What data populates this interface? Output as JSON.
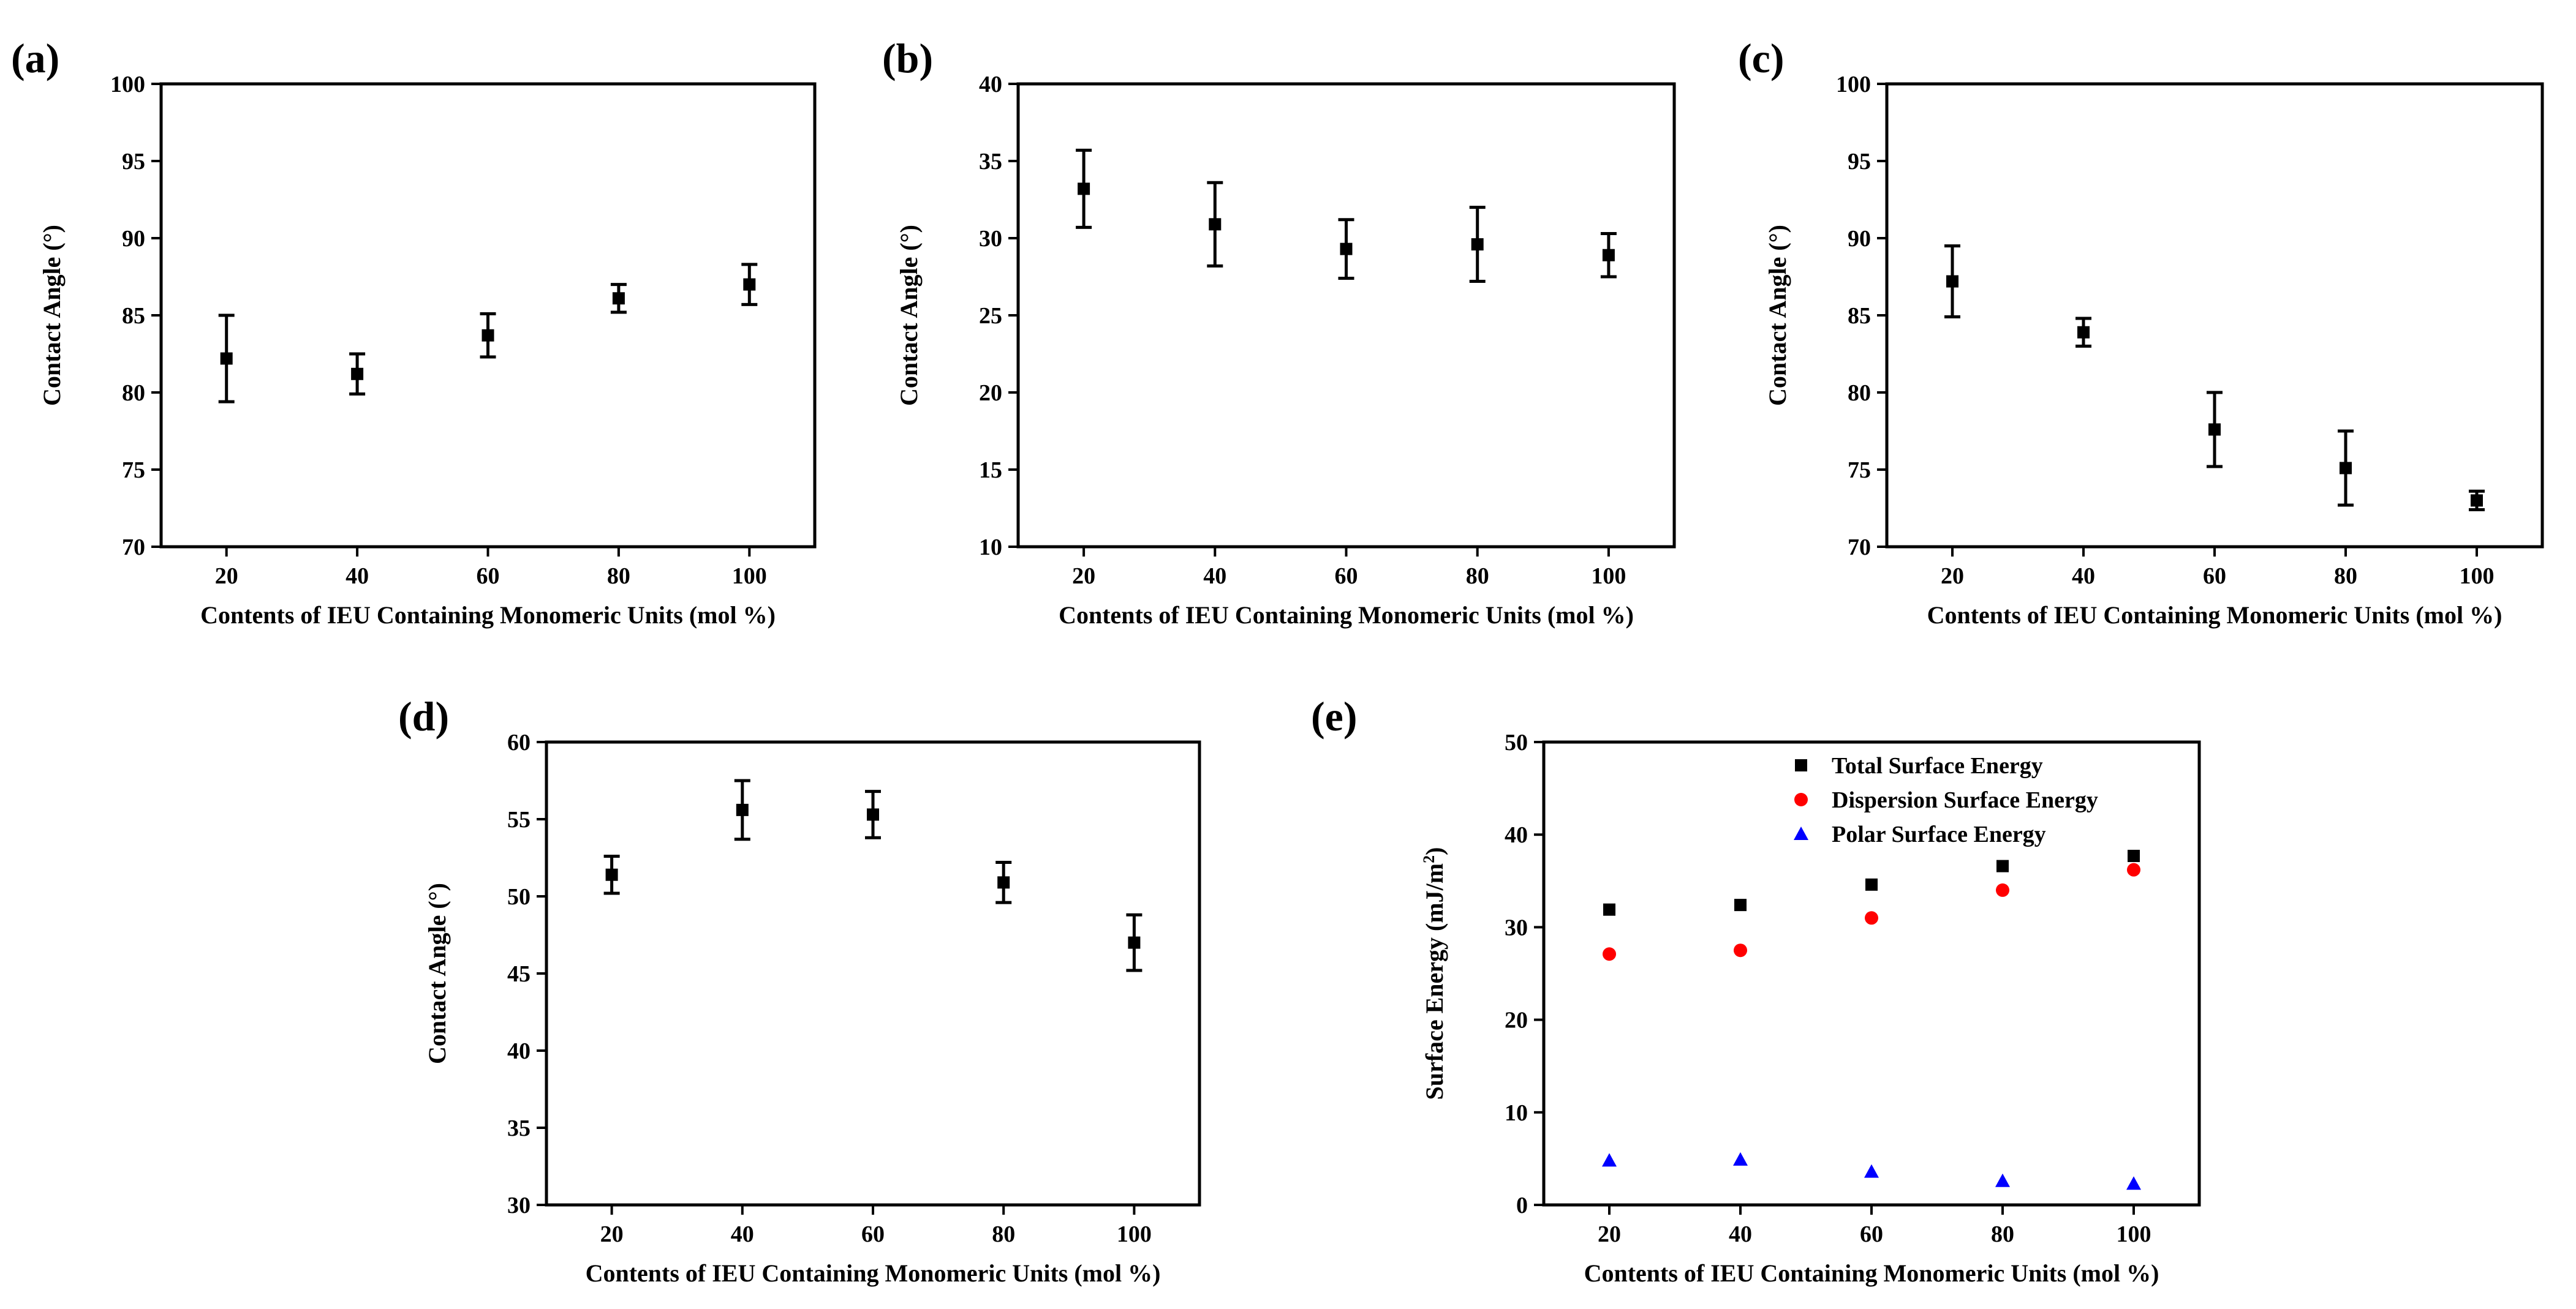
{
  "chart_data": [
    {
      "panel": "(a)",
      "type": "scatter",
      "xlabel": "Contents of IEU Containing Monomeric Units (mol %)",
      "ylabel": "Contact Angle (°)",
      "x": [
        20,
        40,
        60,
        80,
        100
      ],
      "xticks": [
        20,
        40,
        60,
        80,
        100
      ],
      "xlim": [
        10,
        110
      ],
      "yticks": [
        70,
        75,
        80,
        85,
        90,
        95,
        100
      ],
      "ylim": [
        70,
        100
      ],
      "series": [
        {
          "name": "Contact Angle",
          "marker": "square",
          "color": "#000000",
          "values": [
            82.2,
            81.2,
            83.7,
            86.1,
            87.0
          ],
          "errors": [
            2.8,
            1.3,
            1.4,
            0.9,
            1.3
          ]
        }
      ]
    },
    {
      "panel": "(b)",
      "type": "scatter",
      "xlabel": "Contents of IEU Containing Monomeric Units (mol %)",
      "ylabel": "Contact Angle (°)",
      "x": [
        20,
        40,
        60,
        80,
        100
      ],
      "xticks": [
        20,
        40,
        60,
        80,
        100
      ],
      "xlim": [
        10,
        110
      ],
      "yticks": [
        10,
        15,
        20,
        25,
        30,
        35,
        40
      ],
      "ylim": [
        10,
        40
      ],
      "series": [
        {
          "name": "Contact Angle",
          "marker": "square",
          "color": "#000000",
          "values": [
            33.2,
            30.9,
            29.3,
            29.6,
            28.9
          ],
          "errors": [
            2.5,
            2.7,
            1.9,
            2.4,
            1.4
          ]
        }
      ]
    },
    {
      "panel": "(c)",
      "type": "scatter",
      "xlabel": "Contents of IEU Containing Monomeric Units (mol %)",
      "ylabel": "Contact Angle (°)",
      "x": [
        20,
        40,
        60,
        80,
        100
      ],
      "xticks": [
        20,
        40,
        60,
        80,
        100
      ],
      "xlim": [
        10,
        110
      ],
      "yticks": [
        70,
        75,
        80,
        85,
        90,
        95,
        100
      ],
      "ylim": [
        70,
        100
      ],
      "series": [
        {
          "name": "Contact Angle",
          "marker": "square",
          "color": "#000000",
          "values": [
            87.2,
            83.9,
            77.6,
            75.1,
            73.0
          ],
          "errors": [
            2.3,
            0.9,
            2.4,
            2.4,
            0.6
          ]
        }
      ]
    },
    {
      "panel": "(d)",
      "type": "scatter",
      "xlabel": "Contents of IEU Containing Monomeric Units (mol %)",
      "ylabel": "Contact Angle (°)",
      "x": [
        20,
        40,
        60,
        80,
        100
      ],
      "xticks": [
        20,
        40,
        60,
        80,
        100
      ],
      "xlim": [
        10,
        110
      ],
      "yticks": [
        30,
        35,
        40,
        45,
        50,
        55,
        60
      ],
      "ylim": [
        30,
        60
      ],
      "series": [
        {
          "name": "Contact Angle",
          "marker": "square",
          "color": "#000000",
          "values": [
            51.4,
            55.6,
            55.3,
            50.9,
            47.0
          ],
          "errors": [
            1.2,
            1.9,
            1.5,
            1.3,
            1.8
          ]
        }
      ]
    },
    {
      "panel": "(e)",
      "type": "scatter",
      "xlabel": "Contents of IEU Containing Monomeric Units (mol %)",
      "ylabel": "Surface Energy (mJ/m",
      "ylabel_sup": "2",
      "ylabel_end": ")",
      "x": [
        20,
        40,
        60,
        80,
        100
      ],
      "xticks": [
        20,
        40,
        60,
        80,
        100
      ],
      "xlim": [
        10,
        110
      ],
      "yticks": [
        0,
        10,
        20,
        30,
        40,
        50
      ],
      "ylim": [
        0,
        50
      ],
      "legend": "top-right",
      "series": [
        {
          "name": "Total Surface Energy",
          "marker": "square",
          "color": "#000000",
          "values": [
            31.9,
            32.4,
            34.6,
            36.6,
            37.7
          ]
        },
        {
          "name": "Dispersion Surface Energy",
          "marker": "circle",
          "color": "#ff0000",
          "values": [
            27.1,
            27.5,
            31.0,
            34.0,
            36.2
          ]
        },
        {
          "name": "Polar Surface Energy",
          "marker": "triangle",
          "color": "#0000ff",
          "values": [
            4.8,
            4.9,
            3.6,
            2.6,
            2.3
          ]
        }
      ]
    }
  ]
}
